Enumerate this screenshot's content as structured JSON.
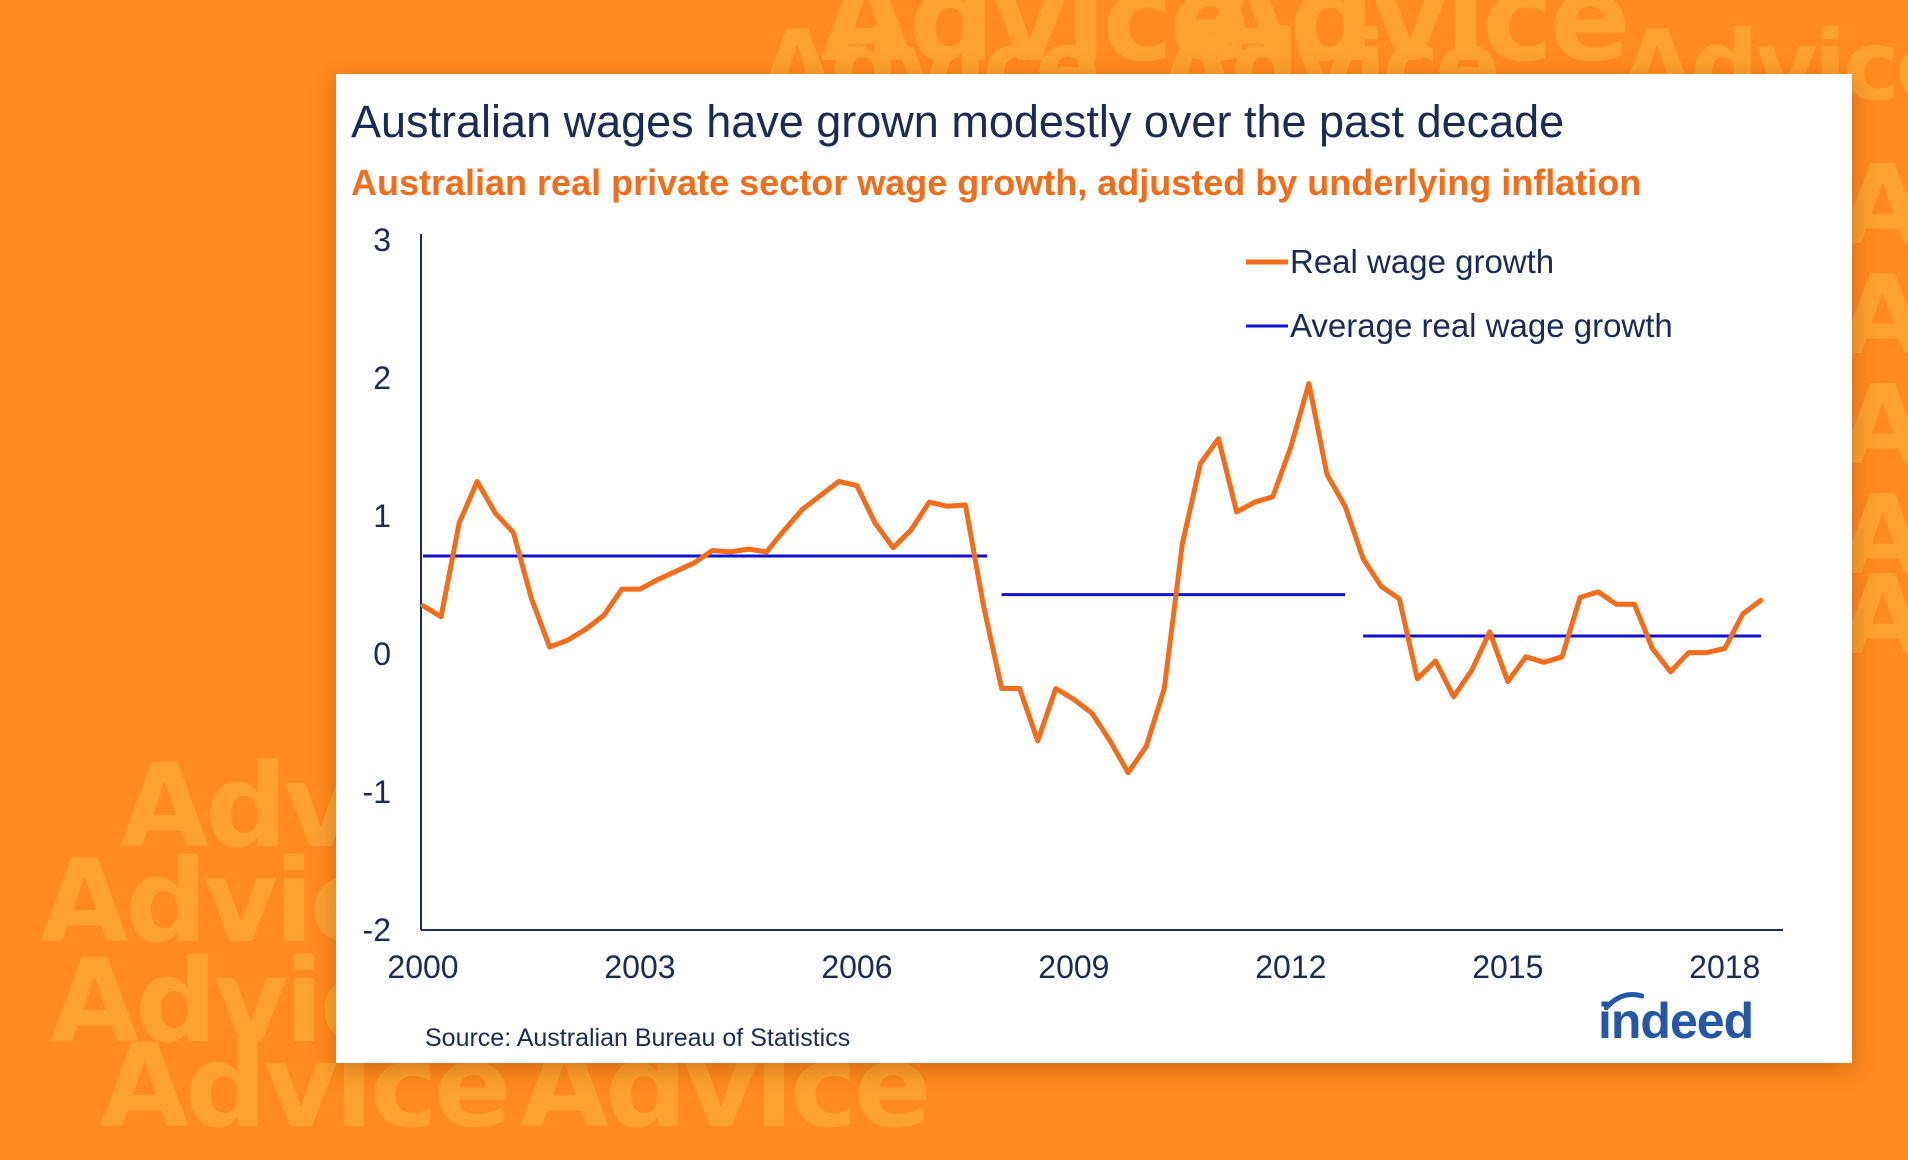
{
  "background": {
    "word": "Advice",
    "color": "#ff8a1e"
  },
  "card": {
    "title": "Australian wages have grown modestly over the past decade",
    "subtitle": "Australian real private sector wage growth, adjusted by underlying  inflation",
    "source": "Source: Australian Bureau of Statistics",
    "logo_text": "indeed"
  },
  "colors": {
    "title": "#1b2b55",
    "subtitle": "#f26c1a",
    "real": "#f26c1a",
    "average": "#1010d8",
    "axis": "#1b2b55",
    "logo": "#2557a7"
  },
  "chart_data": {
    "type": "line",
    "title": "Australian wages have grown modestly over the past decade",
    "subtitle": "Australian real private sector wage growth, adjusted by underlying  inflation",
    "xlim": [
      2000,
      2018.75
    ],
    "ylim": [
      -2,
      3
    ],
    "yticks": [
      3,
      2,
      1,
      0,
      -1,
      -2
    ],
    "xticks": [
      2000,
      2003,
      2006,
      2009,
      2012,
      2015,
      2018
    ],
    "grid": false,
    "legend_position": "top-right",
    "series": [
      {
        "name": "Real wage growth",
        "color": "#f26c1a",
        "x": [
          2000.0,
          2000.25,
          2000.5,
          2000.75,
          2001.0,
          2001.25,
          2001.5,
          2001.75,
          2002.0,
          2002.25,
          2002.5,
          2002.75,
          2003.0,
          2003.25,
          2003.5,
          2003.75,
          2004.0,
          2004.25,
          2004.5,
          2004.75,
          2005.0,
          2005.25,
          2005.5,
          2005.75,
          2006.0,
          2006.25,
          2006.5,
          2006.75,
          2007.0,
          2007.25,
          2007.5,
          2007.75,
          2008.0,
          2008.25,
          2008.5,
          2008.75,
          2009.0,
          2009.25,
          2009.5,
          2009.75,
          2010.0,
          2010.25,
          2010.5,
          2010.75,
          2011.0,
          2011.25,
          2011.5,
          2011.75,
          2012.0,
          2012.25,
          2012.5,
          2012.75,
          2013.0,
          2013.25,
          2013.5,
          2013.75,
          2014.0,
          2014.25,
          2014.5,
          2014.75,
          2015.0,
          2015.25,
          2015.5,
          2015.75,
          2016.0,
          2016.25,
          2016.5,
          2016.75,
          2017.0,
          2017.25,
          2017.5,
          2017.75,
          2018.0,
          2018.25,
          2018.5
        ],
        "values": [
          0.35,
          0.27,
          0.95,
          1.25,
          1.02,
          0.88,
          0.4,
          0.05,
          0.1,
          0.18,
          0.28,
          0.47,
          0.47,
          0.54,
          0.6,
          0.66,
          0.75,
          0.74,
          0.76,
          0.74,
          0.9,
          1.05,
          1.15,
          1.25,
          1.22,
          0.95,
          0.77,
          0.9,
          1.1,
          1.07,
          1.08,
          0.35,
          -0.25,
          -0.25,
          -0.63,
          -0.25,
          -0.33,
          -0.43,
          -0.63,
          -0.86,
          -0.67,
          -0.25,
          0.8,
          1.38,
          1.56,
          1.03,
          1.1,
          1.14,
          1.5,
          1.96,
          1.3,
          1.07,
          0.69,
          0.49,
          0.4,
          -0.18,
          -0.05,
          -0.31,
          -0.12,
          0.16,
          -0.2,
          -0.02,
          -0.06,
          -0.02,
          0.41,
          0.45,
          0.36,
          0.36,
          0.04,
          -0.13,
          0.01,
          0.01,
          0.04,
          0.29,
          0.39
        ]
      },
      {
        "name": "Average real wage growth",
        "color": "#1010d8",
        "segments": [
          {
            "x": [
              2000.0,
              2007.8
            ],
            "y": 0.71
          },
          {
            "x": [
              2008.0,
              2012.75
            ],
            "y": 0.43
          },
          {
            "x": [
              2013.0,
              2018.5
            ],
            "y": 0.13
          }
        ]
      }
    ]
  }
}
